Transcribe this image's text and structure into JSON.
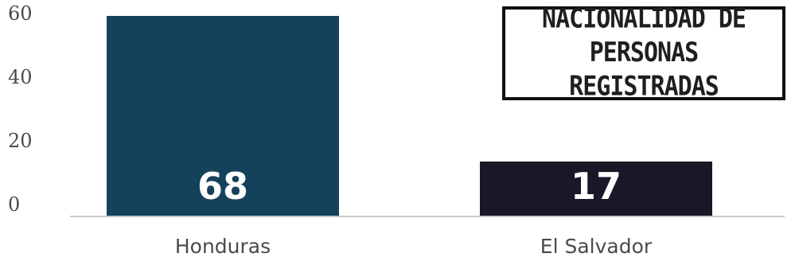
{
  "chart_data": {
    "type": "bar",
    "title": "NACIONALIDAD DE PERSONAS REGISTRADAS",
    "categories": [
      "Honduras",
      "El Salvador"
    ],
    "values": [
      68,
      17
    ],
    "data_labels": [
      "68",
      "17"
    ],
    "xlabel": "",
    "ylabel": "",
    "ylim": [
      0,
      60
    ],
    "yticks": [
      0,
      20,
      40,
      60
    ],
    "ytick_labels": [
      "0",
      "20",
      "40",
      "60"
    ],
    "grid": false,
    "legend": "none",
    "colors": [
      "#14425a",
      "#1a1727"
    ],
    "axis_color": "#c8c8c8",
    "title_box_border": "#111111"
  }
}
